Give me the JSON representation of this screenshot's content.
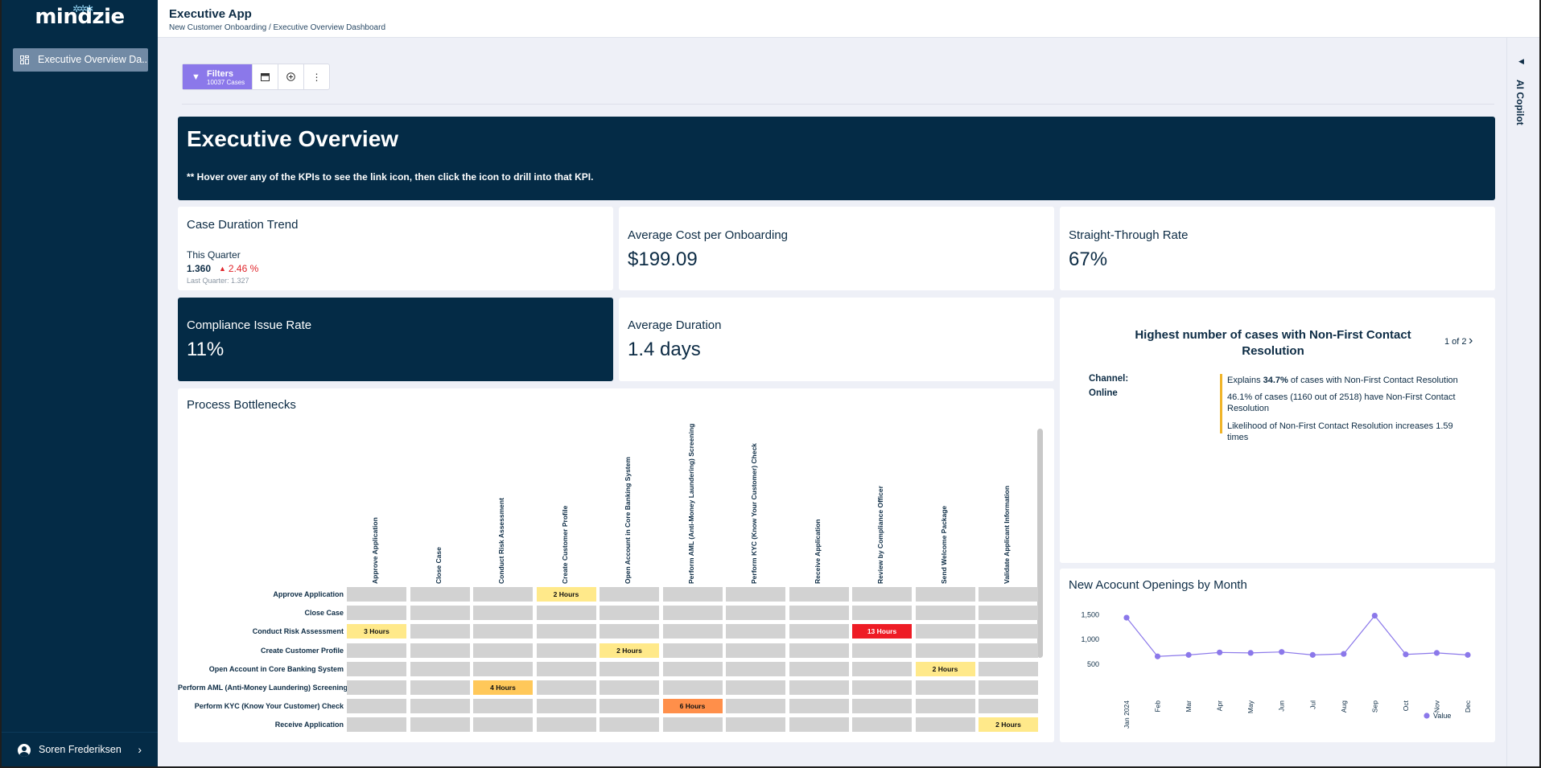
{
  "app": {
    "logo": "mindzie",
    "title": "Executive App",
    "breadcrumb": "New Customer Onboarding / Executive Overview Dashboard"
  },
  "sidebar": {
    "items": [
      {
        "label": "Executive Overview Da...",
        "icon": "dashboard-icon"
      }
    ],
    "user": "Soren Frederiksen"
  },
  "toolbar": {
    "filters_label": "Filters",
    "filters_count": "10037 Cases",
    "icons": [
      "funnel-icon",
      "calendar-icon",
      "add-circle-icon",
      "more-vertical-icon"
    ]
  },
  "banner": {
    "title": "Executive Overview",
    "note": "** Hover over any of the KPIs to see the link icon, then click the icon to drill into that KPI."
  },
  "kpis": {
    "trend": {
      "label": "Case Duration Trend",
      "period": "This Quarter",
      "value": "1.360",
      "change": "2.46 %",
      "last_quarter": "Last Quarter:  1.327"
    },
    "avg_cost": {
      "label": "Average Cost per Onboarding",
      "value": "$199.09"
    },
    "straight_through": {
      "label": "Straight-Through Rate",
      "value": "67%"
    },
    "compliance": {
      "label": "Compliance Issue Rate",
      "value": "11%"
    },
    "avg_duration": {
      "label": "Average Duration",
      "value": "1.4 days"
    }
  },
  "insight": {
    "title": "Highest number of cases with Non-First Contact Resolution",
    "pager": "1 of 2",
    "attribute_key": "Channel:",
    "attribute_value": "Online",
    "line1_pre": "Explains ",
    "line1_bold": "34.7%",
    "line1_post": " of cases with Non-First Contact Resolution",
    "line2": "46.1% of cases (1160 out of 2518) have Non-First Contact Resolution",
    "line3": "Likelihood of Non-First Contact Resolution increases 1.59 times"
  },
  "bottlenecks": {
    "title": "Process Bottlenecks",
    "columns": [
      "Approve Application",
      "Close Case",
      "Conduct Risk Assessment",
      "Create Customer Profile",
      "Open Account in Core Banking System",
      "Perform AML (Anti-Money Laundering) Screening",
      "Perform KYC (Know Your Customer) Check",
      "Receive Application",
      "Review by Compliance Officer",
      "Send Welcome Package",
      "Validate Applicant Information"
    ],
    "rows": [
      "Approve Application",
      "Close Case",
      "Conduct Risk Assessment",
      "Create Customer Profile",
      "Open Account in Core Banking System",
      "Perform AML (Anti-Money Laundering) Screening",
      "Perform KYC (Know Your Customer) Check",
      "Receive Application"
    ],
    "highlights": [
      {
        "row": 0,
        "col": 3,
        "label": "2 Hours",
        "level": "y"
      },
      {
        "row": 2,
        "col": 0,
        "label": "3 Hours",
        "level": "y"
      },
      {
        "row": 2,
        "col": 8,
        "label": "13 Hours",
        "level": "r"
      },
      {
        "row": 3,
        "col": 4,
        "label": "2 Hours",
        "level": "y"
      },
      {
        "row": 4,
        "col": 9,
        "label": "2 Hours",
        "level": "y"
      },
      {
        "row": 5,
        "col": 2,
        "label": "4 Hours",
        "level": "o"
      },
      {
        "row": 6,
        "col": 5,
        "label": "6 Hours",
        "level": "or"
      },
      {
        "row": 7,
        "col": 10,
        "label": "2 Hours",
        "level": "y"
      }
    ]
  },
  "chart_data": {
    "type": "line",
    "title": "New Acocunt Openings by Month",
    "categories": [
      "Jan 2024",
      "Feb",
      "Mar",
      "Apr",
      "May",
      "Jun",
      "Jul",
      "Aug",
      "Sep",
      "Oct",
      "Nov",
      "Dec"
    ],
    "series": [
      {
        "name": "Value",
        "values": [
          1440,
          660,
          690,
          740,
          730,
          750,
          690,
          710,
          1480,
          700,
          730,
          690
        ]
      }
    ],
    "yticks": [
      500,
      1000,
      1500
    ],
    "ylim": [
      0,
      1700
    ],
    "legend": "bottom-right",
    "color": "#8b78ea"
  },
  "copilot": {
    "label": "AI Copilot"
  }
}
